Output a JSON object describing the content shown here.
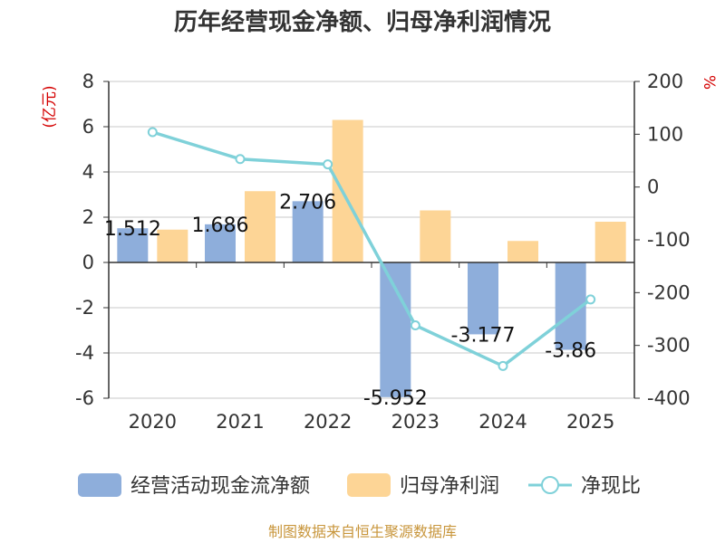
{
  "colors": {
    "cash": "#8eaedb",
    "profit": "#fdd596",
    "ratio": "#7fd1d9",
    "source": "#c8963c",
    "unit": "#d40000"
  },
  "chart_data": {
    "type": "bar",
    "title": "历年经营现金净额、归母净利润情况",
    "categories": [
      "2020",
      "2021",
      "2022",
      "2023",
      "2024",
      "2025"
    ],
    "series": [
      {
        "name": "经营活动现金流净额",
        "type": "bar",
        "axis": "left",
        "values": [
          1.512,
          1.686,
          2.706,
          -5.952,
          -3.177,
          -3.86
        ],
        "labels": [
          "1.512",
          "1.686",
          "2.706",
          "-5.952",
          "-3.177",
          "-3.86"
        ]
      },
      {
        "name": "归母净利润",
        "type": "bar",
        "axis": "left",
        "values": [
          1.45,
          3.15,
          6.3,
          2.3,
          0.95,
          1.8
        ]
      },
      {
        "name": "净现比",
        "type": "line",
        "axis": "right",
        "values": [
          104,
          53,
          43,
          -262,
          -339,
          -213
        ]
      }
    ],
    "y_left": {
      "unit": "(亿元)",
      "min": -6,
      "max": 8,
      "ticks": [
        "-6",
        "-4",
        "-2",
        "0",
        "2",
        "4",
        "6",
        "8"
      ]
    },
    "y_right": {
      "unit": "%",
      "min": -400,
      "max": 200,
      "ticks": [
        "-400",
        "-300",
        "-200",
        "-100",
        "0",
        "100",
        "200"
      ]
    },
    "grid": true,
    "legend": {
      "position": "bottom",
      "items": [
        "经营活动现金流净额",
        "归母净利润",
        "净现比"
      ]
    },
    "source": "制图数据来自恒生聚源数据库"
  }
}
